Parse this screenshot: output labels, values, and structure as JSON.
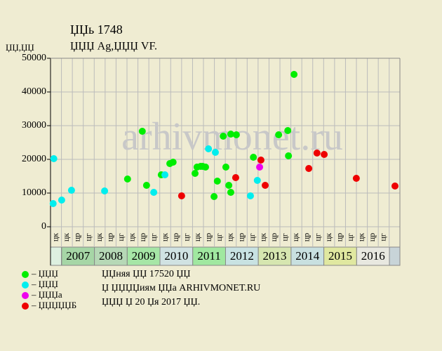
{
  "chart_data": {
    "type": "scatter",
    "title": "ЏЏь 1748",
    "subtitle": "ЏЏЏ Ag,ЏЏЏ VF.",
    "y_label": "ЏЏ,ЏЏ",
    "watermark": "arhivmonet.ru",
    "xlim": [
      2006.66,
      2017.32
    ],
    "ylim": [
      0,
      50000
    ],
    "yticks": [
      0,
      10000,
      20000,
      30000,
      40000,
      50000
    ],
    "grid": true,
    "periods": [
      "цк",
      "цк",
      "цр",
      "цг",
      "цк",
      "цр",
      "цг",
      "цк",
      "цр",
      "цг",
      "цк",
      "цр",
      "цг",
      "цк",
      "цр",
      "цг",
      "цк",
      "цр",
      "цг",
      "цк",
      "цр",
      "цг",
      "цк",
      "цр",
      "цг",
      "цк",
      "цр",
      "цг",
      "цк",
      "цр",
      "цг"
    ],
    "years": [
      "2007",
      "2008",
      "2009",
      "2010",
      "2011",
      "2012",
      "2013",
      "2014",
      "2015",
      "2016"
    ],
    "year_colors": [
      "#a6d6a6",
      "#b6d8b6",
      "#a6e6a6",
      "#d0e2e2",
      "#a0e8a0",
      "#c8e2e2",
      "#d6e6b0",
      "#c8e0e0",
      "#e0e8a0",
      "#e8e8e0"
    ],
    "series": [
      {
        "name": "– ЏЏЏ",
        "color": "#00ee00",
        "x": [
          2009.01,
          2009.46,
          2009.59,
          2010.04,
          2010.3,
          2010.4,
          2011.07,
          2011.13,
          2011.24,
          2011.3,
          2011.39,
          2011.65,
          2011.75,
          2011.93,
          2012.01,
          2012.1,
          2012.16,
          2012.16,
          2012.33,
          2012.85,
          2013.62,
          2013.9,
          2013.92,
          2014.09
        ],
        "values": [
          14170,
          28330,
          12290,
          15420,
          18750,
          19170,
          15830,
          17710,
          17920,
          17920,
          17710,
          8960,
          13540,
          26880,
          17710,
          12290,
          27500,
          10210,
          27290,
          20630,
          27290,
          28540,
          21040,
          45210
        ]
      },
      {
        "name": "– ЏЏЏ",
        "color": "#00eeee",
        "x": [
          2006.76,
          2006.74,
          2007.0,
          2007.3,
          2008.31,
          2009.81,
          2010.15,
          2011.48,
          2011.69,
          2012.76,
          2012.97
        ],
        "values": [
          20210,
          6880,
          7920,
          10830,
          10630,
          10210,
          15420,
          23130,
          22080,
          9170,
          13750
        ]
      },
      {
        "name": "– ЏЏЏа",
        "color": "#ee00ee",
        "x": [
          2013.04
        ],
        "values": [
          17710
        ]
      },
      {
        "name": "– ЏЏЏЏЏБ",
        "color": "#ee0000",
        "x": [
          2010.66,
          2012.31,
          2013.08,
          2013.21,
          2014.54,
          2014.79,
          2015.01,
          2015.99,
          2017.17
        ],
        "values": [
          9170,
          14580,
          19790,
          12290,
          17290,
          21880,
          21460,
          14380,
          12080
        ]
      }
    ],
    "notes": [
      "ЏЏняя ЏЏ 17520 ЏЏ",
      "Џ ЏЏЏЏиям ЏЏа ARHIVMONET.RU",
      "ЏЏЏ Џ 20 Џя 2017 ЏЏ."
    ]
  }
}
